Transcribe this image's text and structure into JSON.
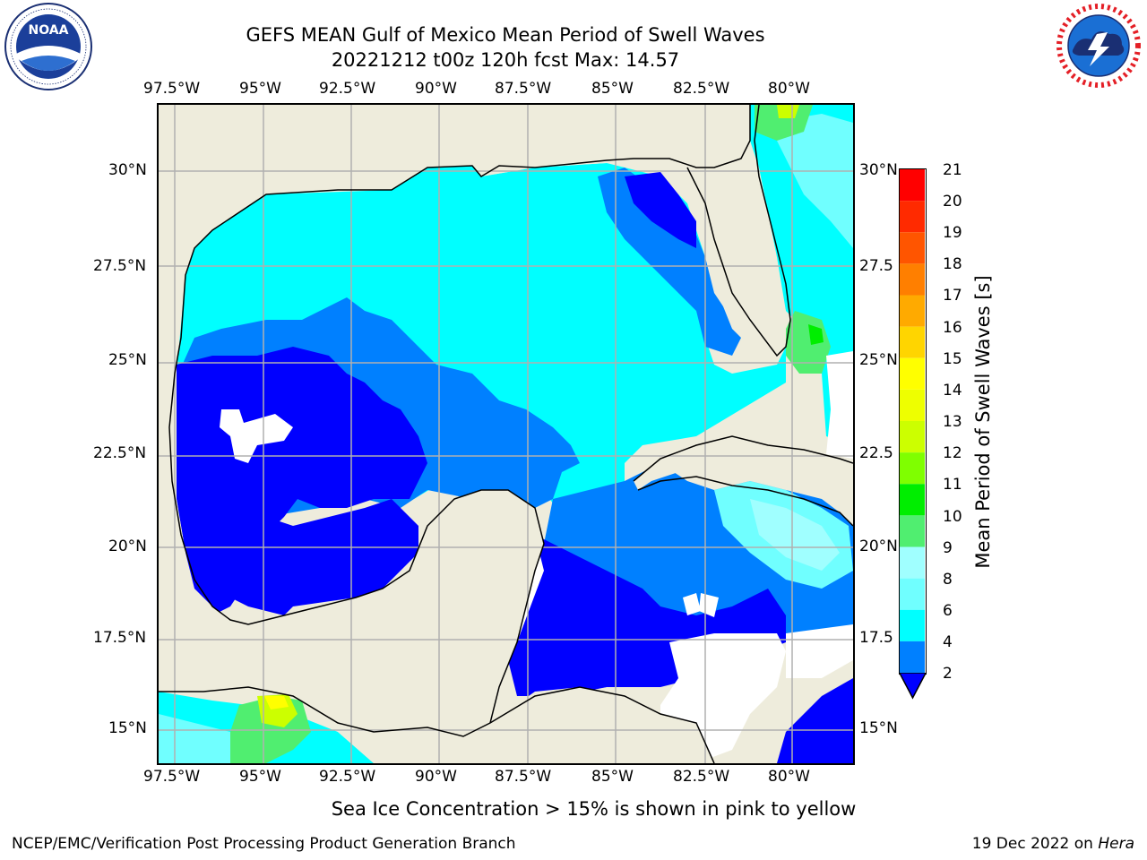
{
  "header": {
    "title_line1": "GEFS MEAN Gulf of Mexico Mean Period of Swell Waves",
    "title_line2": "20221212 t00z 120h fcst   Max: 14.57"
  },
  "logos": {
    "left": {
      "name": "noaa-logo",
      "text": "NOAA",
      "ring_text": "NATIONAL OCEANIC AND ATMOSPHERIC ADMINISTRATION · U.S. DEPARTMENT OF COMMERCE"
    },
    "right": {
      "name": "nws-logo",
      "ring_text": "NATIONAL WEATHER SERVICE"
    }
  },
  "map": {
    "lon_labels_top": [
      "97.5°W",
      "95°W",
      "92.5°W",
      "90°W",
      "87.5°W",
      "85°W",
      "82.5°W",
      "80°W"
    ],
    "lon_labels_bottom": [
      "97.5°W",
      "95°W",
      "92.5°W",
      "90°W",
      "87.5°W",
      "85°W",
      "82.5°W",
      "80°W"
    ],
    "lat_labels_left": [
      "30°N",
      "27.5°N",
      "25°N",
      "22.5°N",
      "20°N",
      "17.5°N",
      "15°N"
    ],
    "lat_labels_right": [
      "30°N",
      "27.5",
      "25°N",
      "22.5",
      "20°N",
      "17.5",
      "15°N"
    ],
    "colors": {
      "land": "#eeecdc",
      "grid": "#b0b0b0",
      "missing": "#ffffff"
    }
  },
  "colorbar": {
    "label": "Mean Period of Swell Waves [s]",
    "ticks": [
      "21",
      "20",
      "19",
      "18",
      "17",
      "16",
      "15",
      "14",
      "13",
      "12",
      "11",
      "10",
      "9",
      "8",
      "6",
      "4",
      "2"
    ],
    "colors_top_to_bottom": [
      "#ff0000",
      "#ff2a00",
      "#ff5500",
      "#ff7f00",
      "#ffaa00",
      "#ffd500",
      "#ffff00",
      "#eeff00",
      "#ccff00",
      "#7fff00",
      "#00ee00",
      "#50ee70",
      "#a0ffff",
      "#70ffff",
      "#00ffff",
      "#0080ff",
      "#0000ff"
    ]
  },
  "footer": {
    "caption": "Sea Ice Concentration > 15% is shown in pink to yellow",
    "left_text": "NCEP/EMC/Verification Post Processing Product Generation Branch",
    "right_text": "19 Dec 2022 on ",
    "right_text_italic": "Hera"
  }
}
